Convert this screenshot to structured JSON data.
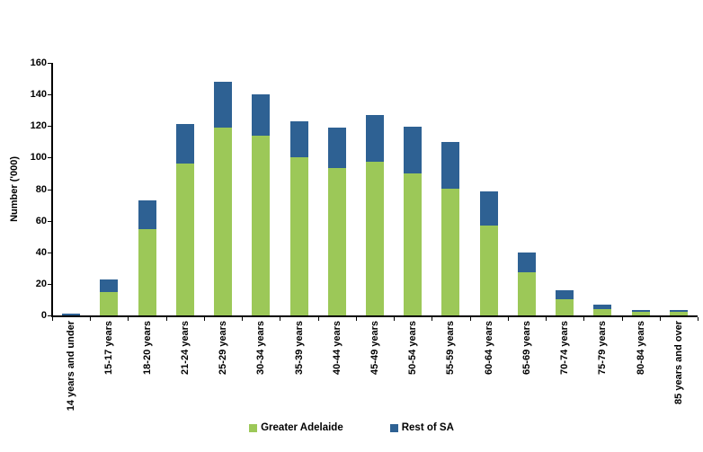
{
  "chart_data": {
    "type": "bar",
    "stacked": true,
    "title": "",
    "xlabel": "",
    "ylabel": "Number ('000)",
    "ylim": [
      0,
      160
    ],
    "yticks": [
      0,
      20,
      40,
      60,
      80,
      100,
      120,
      140,
      160
    ],
    "grid": false,
    "legend_position": "bottom",
    "categories": [
      "14 years and under",
      "15-17 years",
      "18-20 years",
      "21-24 years",
      "25-29 years",
      "30-34 years",
      "35-39 years",
      "40-44 years",
      "45-49 years",
      "50-54 years",
      "55-59 years",
      "60-64 years",
      "65-69 years",
      "70-74 years",
      "75-79 years",
      "80-84 years",
      "85 years and over"
    ],
    "series": [
      {
        "name": "Greater Adelaide",
        "color": "#9CC858",
        "values": [
          0,
          15,
          54.5,
          96,
          119,
          114,
          100,
          93.5,
          97.5,
          90,
          80.5,
          57,
          27.5,
          10.5,
          4,
          2,
          2
        ]
      },
      {
        "name": "Rest of SA",
        "color": "#2E6193",
        "values": [
          1.2,
          8,
          18.5,
          25,
          29,
          26,
          23,
          25.5,
          29.5,
          29.5,
          29.5,
          21.5,
          12.5,
          5.5,
          3,
          1.5,
          1.3
        ]
      }
    ],
    "axis_color": "#000000",
    "background_color": "#ffffff"
  }
}
